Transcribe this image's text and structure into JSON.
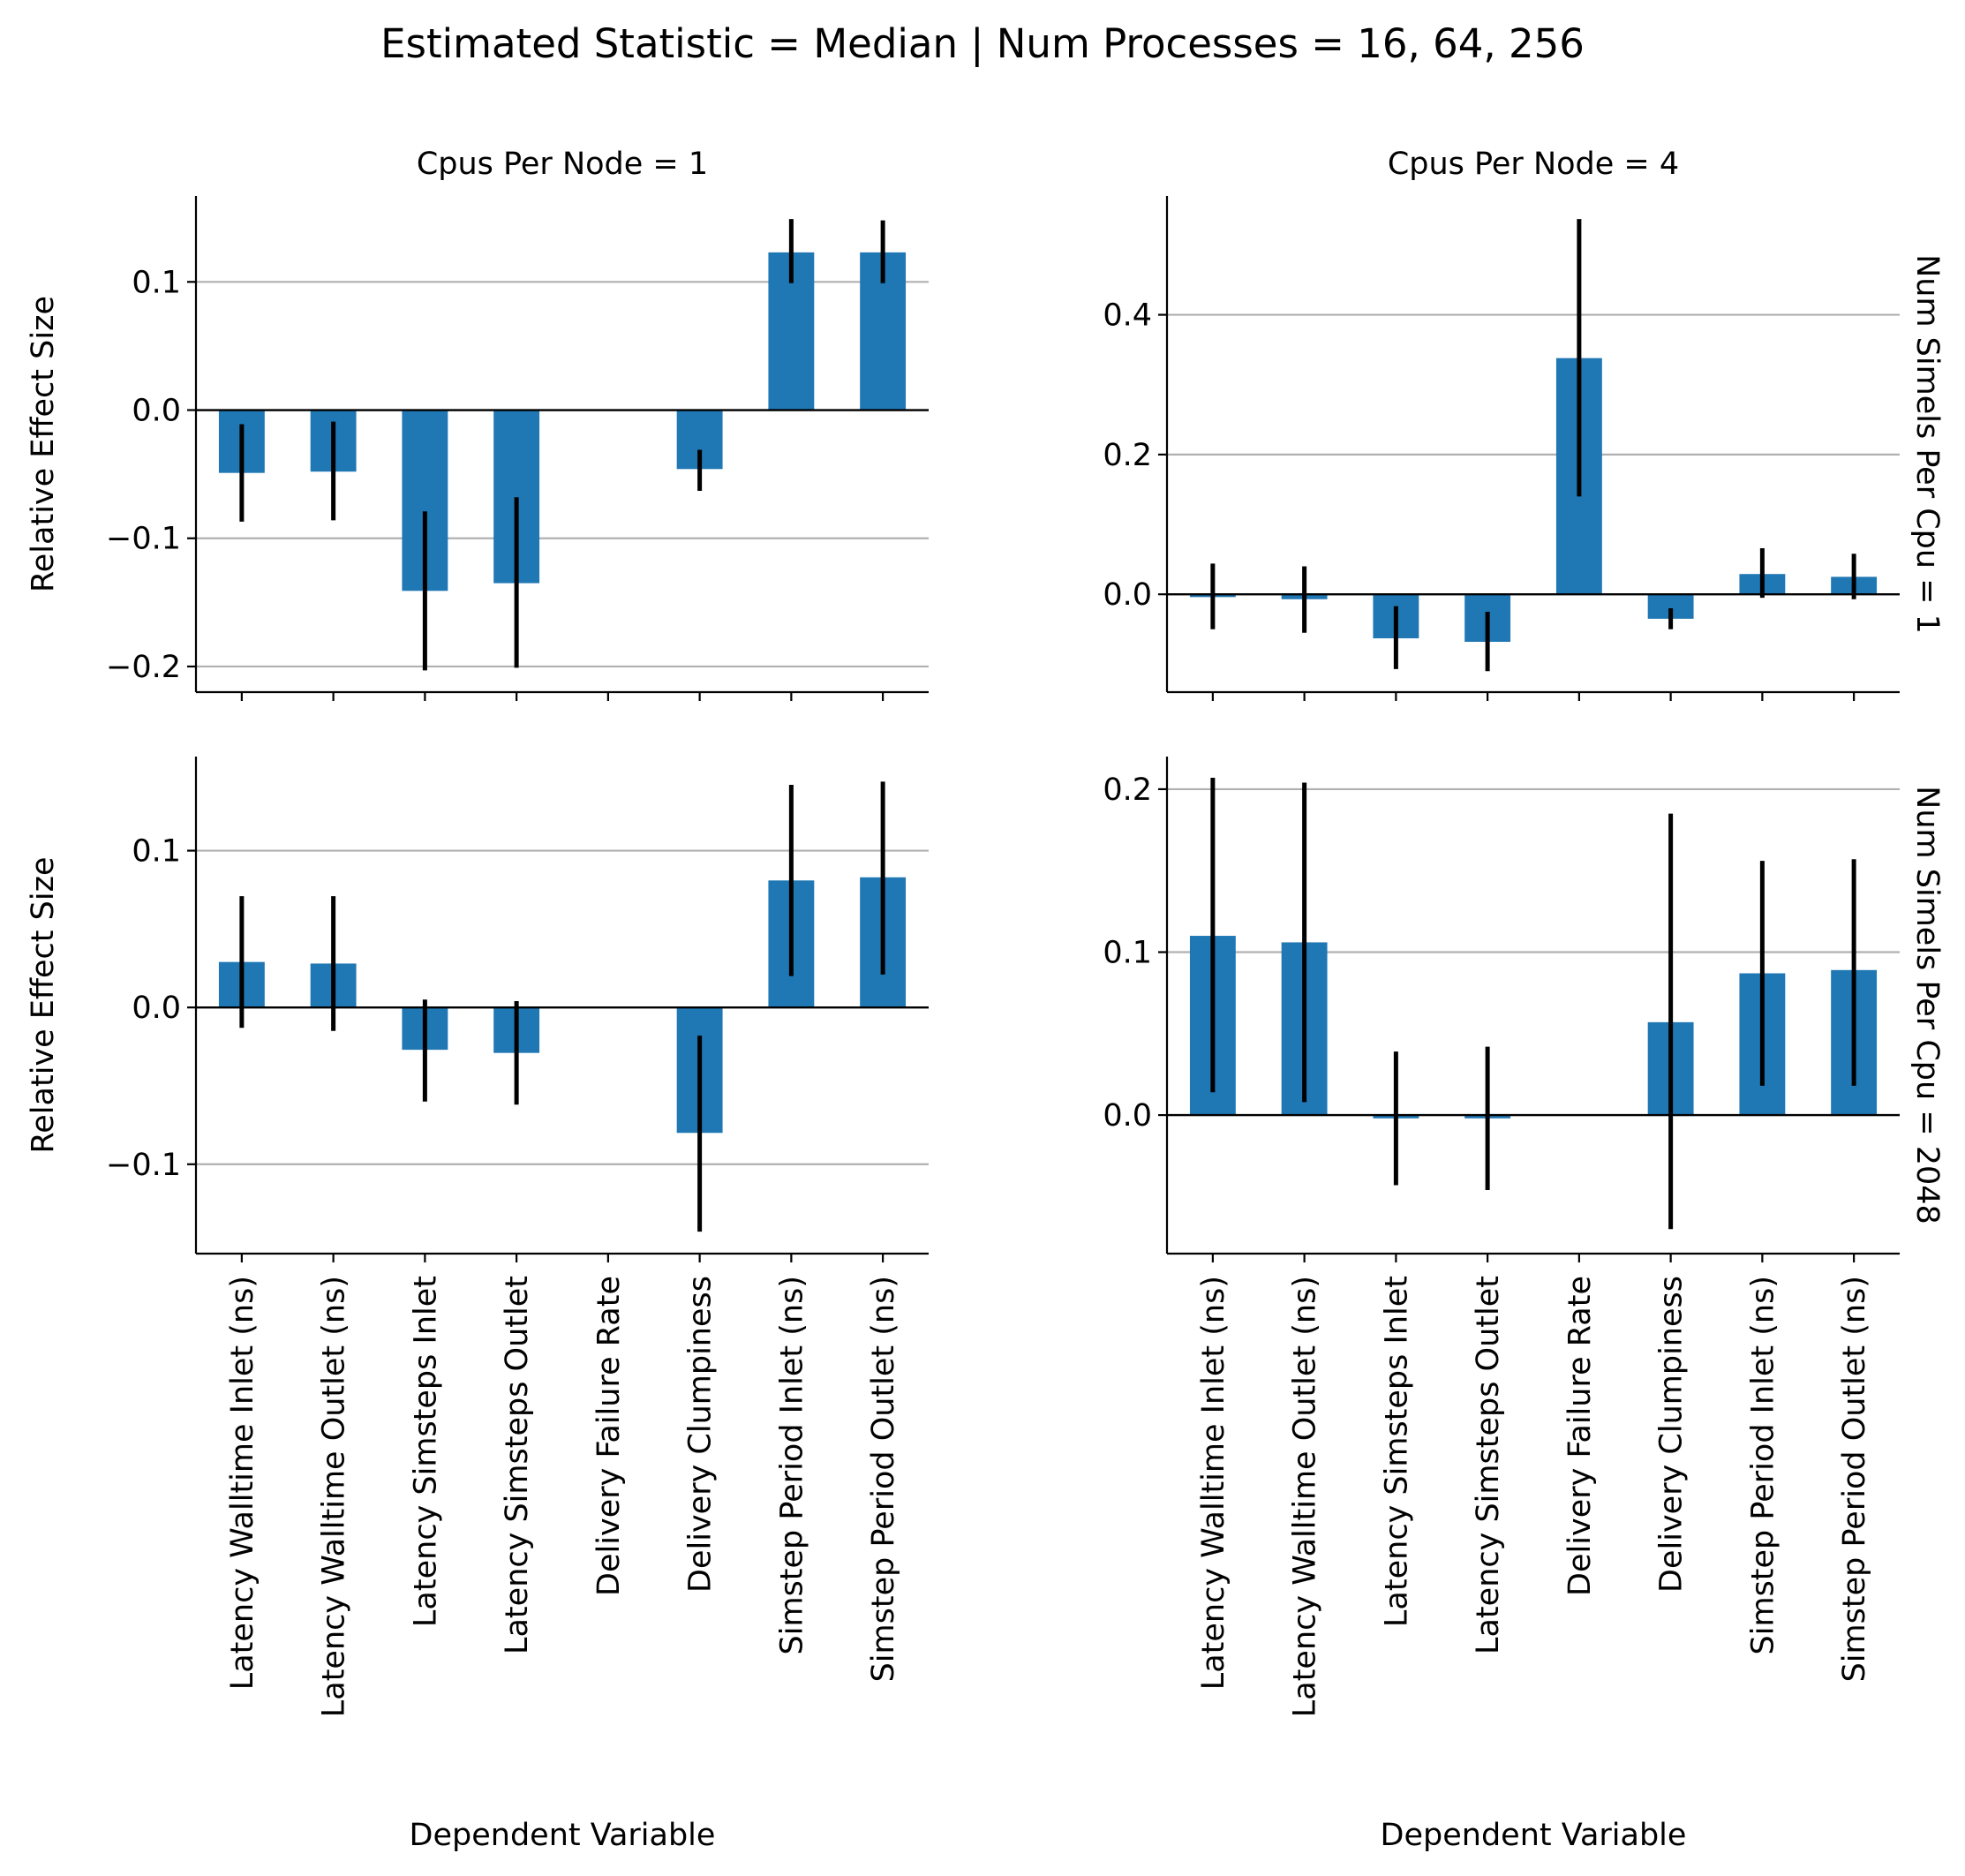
{
  "suptitle": "Estimated Statistic = Median | Num Processes = 16, 64, 256",
  "colors": {
    "bar": "#1f77b4",
    "error": "#000000",
    "grid": "#b0b0b0",
    "zero": "#000000"
  },
  "chart_data": {
    "type": "bar",
    "categories": [
      "Latency Walltime Inlet (ns)",
      "Latency Walltime Outlet (ns)",
      "Latency Simsteps Inlet",
      "Latency Simsteps Outlet",
      "Delivery Failure Rate",
      "Delivery Clumpiness",
      "Simstep Period Inlet (ns)",
      "Simstep Period Outlet (ns)"
    ],
    "xlabel": "Dependent Variable",
    "ylabel": "Relative Effect Size",
    "grid": "y",
    "error_bars": true,
    "panels": [
      {
        "title": "Cpus Per Node = 1",
        "row_label": "",
        "ylim": [
          -0.22,
          0.167
        ],
        "yticks": [
          -0.2,
          -0.1,
          0.0,
          0.1
        ],
        "ytick_labels": [
          "−0.2",
          "−0.1",
          "0.0",
          "0.1"
        ],
        "values": [
          -0.049,
          -0.048,
          -0.141,
          -0.135,
          null,
          -0.046,
          0.123,
          0.123
        ],
        "err_low": [
          -0.087,
          -0.086,
          -0.203,
          -0.201,
          null,
          -0.063,
          0.099,
          0.099
        ],
        "err_high": [
          -0.011,
          -0.009,
          -0.079,
          -0.068,
          null,
          -0.031,
          0.149,
          0.148
        ]
      },
      {
        "title": "Cpus Per Node = 4",
        "row_label": "Num Simels Per Cpu = 1",
        "ylim": [
          -0.14,
          0.57
        ],
        "yticks": [
          0.0,
          0.2,
          0.4
        ],
        "ytick_labels": [
          "0.0",
          "0.2",
          "0.4"
        ],
        "values": [
          -0.004,
          -0.007,
          -0.063,
          -0.068,
          0.338,
          -0.035,
          0.029,
          0.025
        ],
        "err_low": [
          -0.05,
          -0.055,
          -0.107,
          -0.11,
          0.14,
          -0.05,
          -0.005,
          -0.007
        ],
        "err_high": [
          0.044,
          0.04,
          -0.017,
          -0.025,
          0.537,
          -0.02,
          0.066,
          0.058
        ]
      },
      {
        "title": "",
        "row_label": "",
        "ylim": [
          -0.157,
          0.16
        ],
        "yticks": [
          -0.1,
          0.0,
          0.1
        ],
        "ytick_labels": [
          "−0.1",
          "0.0",
          "0.1"
        ],
        "values": [
          0.029,
          0.028,
          -0.027,
          -0.029,
          null,
          -0.08,
          0.081,
          0.083
        ],
        "err_low": [
          -0.013,
          -0.015,
          -0.06,
          -0.062,
          null,
          -0.143,
          0.02,
          0.021
        ],
        "err_high": [
          0.071,
          0.071,
          0.005,
          0.004,
          null,
          -0.018,
          0.142,
          0.144
        ]
      },
      {
        "title": "",
        "row_label": "Num Simels Per Cpu = 2048",
        "ylim": [
          -0.085,
          0.22
        ],
        "yticks": [
          0.0,
          0.1,
          0.2
        ],
        "ytick_labels": [
          "0.0",
          "0.1",
          "0.2"
        ],
        "values": [
          0.11,
          0.106,
          -0.002,
          -0.002,
          null,
          0.057,
          0.087,
          0.089
        ],
        "err_low": [
          0.014,
          0.008,
          -0.043,
          -0.046,
          null,
          -0.07,
          0.018,
          0.018
        ],
        "err_high": [
          0.207,
          0.204,
          0.039,
          0.042,
          null,
          0.185,
          0.156,
          0.157
        ]
      }
    ]
  }
}
